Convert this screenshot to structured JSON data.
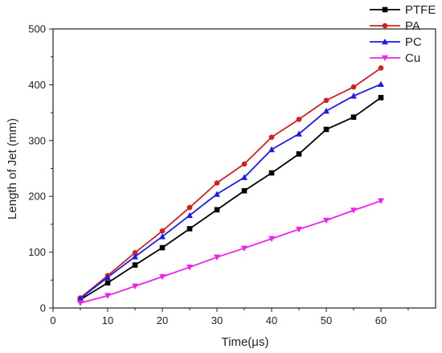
{
  "chart_data": {
    "type": "line",
    "title": "",
    "xlabel": "Time(μs)",
    "ylabel": "Length of Jet (mm)",
    "xlim": [
      0,
      70
    ],
    "ylim": [
      0,
      500
    ],
    "xticks": [
      0,
      10,
      20,
      30,
      40,
      50,
      60
    ],
    "yticks": [
      0,
      100,
      200,
      300,
      400,
      500
    ],
    "grid": false,
    "legend_position": "top-right",
    "x": [
      5,
      10,
      15,
      20,
      25,
      30,
      35,
      40,
      45,
      50,
      55,
      60
    ],
    "series": [
      {
        "name": "PTFE",
        "color": "#000000",
        "marker": "square",
        "values": [
          15,
          45,
          77,
          108,
          142,
          176,
          210,
          242,
          276,
          320,
          342,
          377
        ]
      },
      {
        "name": "PA",
        "color": "#d62020",
        "marker": "circle",
        "values": [
          18,
          58,
          99,
          138,
          180,
          224,
          258,
          306,
          338,
          372,
          396,
          430
        ]
      },
      {
        "name": "PC",
        "color": "#1a1aee",
        "marker": "triangle-up",
        "values": [
          17,
          55,
          92,
          128,
          166,
          204,
          234,
          284,
          312,
          353,
          380,
          401
        ]
      },
      {
        "name": "Cu",
        "color": "#ee22ee",
        "marker": "triangle-down",
        "values": [
          9,
          22,
          39,
          56,
          73,
          91,
          107,
          124,
          141,
          157,
          175,
          192
        ]
      }
    ]
  }
}
